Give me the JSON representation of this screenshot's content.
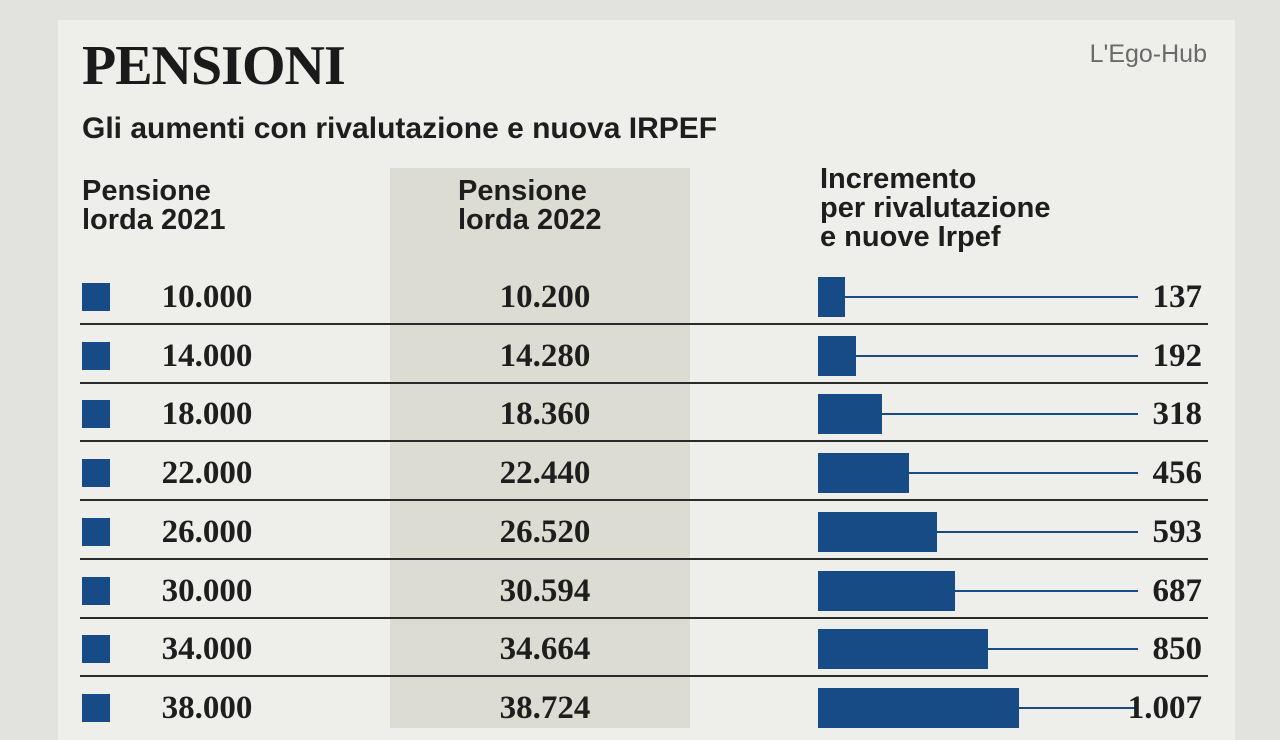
{
  "header": {
    "title": "PENSIONI",
    "subtitle": "Gli aumenti con rivalutazione e nuova IRPEF",
    "source": "L'Ego-Hub"
  },
  "table": {
    "columns": [
      [
        "Pensione",
        "lorda 2021"
      ],
      [
        "Pensione",
        "lorda 2022"
      ],
      [
        "Incremento",
        "per rivalutazione",
        "e nuove Irpef"
      ]
    ],
    "rows": [
      {
        "pension_2021": "10.000",
        "pension_2022": "10.200",
        "increment": 137
      },
      {
        "pension_2021": "14.000",
        "pension_2022": "14.280",
        "increment": 192
      },
      {
        "pension_2021": "18.000",
        "pension_2022": "18.360",
        "increment": 318
      },
      {
        "pension_2021": "22.000",
        "pension_2022": "22.440",
        "increment": 456
      },
      {
        "pension_2021": "26.000",
        "pension_2022": "26.520",
        "increment": 593
      },
      {
        "pension_2021": "30.000",
        "pension_2022": "30.594",
        "increment": 687
      },
      {
        "pension_2021": "34.000",
        "pension_2022": "34.664",
        "increment": 850
      },
      {
        "pension_2021": "38.000",
        "pension_2022": "38.724",
        "increment": {
          "value": 1007,
          "label": "1.007"
        }
      }
    ]
  }
}
